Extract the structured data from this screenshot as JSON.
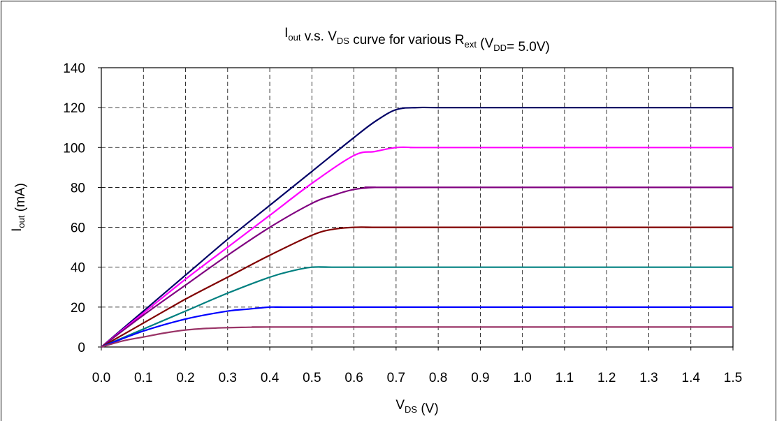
{
  "chart_data": {
    "type": "line",
    "title": {
      "parts": [
        {
          "text": "I",
          "sub": "out"
        },
        {
          "text": " v.s. V",
          "sub": "DS"
        },
        {
          "text": " curve for various R",
          "sub": "ext"
        },
        {
          "text": " (V",
          "sub": "DD"
        },
        {
          "text": "= 5.0V)",
          "sub": ""
        }
      ]
    },
    "xlabel": {
      "main": "V",
      "sub": "DS",
      "suffix": " (V)"
    },
    "ylabel": {
      "main": "I",
      "sub": "out",
      "suffix": " (mA)"
    },
    "xlim": [
      0,
      1.5
    ],
    "ylim": [
      0,
      140
    ],
    "xticks": [
      "0.0",
      "0.1",
      "0.2",
      "0.3",
      "0.4",
      "0.5",
      "0.6",
      "0.7",
      "0.8",
      "0.9",
      "1.0",
      "1.1",
      "1.2",
      "1.3",
      "1.4",
      "1.5"
    ],
    "yticks": [
      "0",
      "20",
      "40",
      "60",
      "80",
      "100",
      "120",
      "140"
    ],
    "grid": true,
    "legend": "none",
    "series": [
      {
        "color": "#000066",
        "x": [
          0,
          0.1,
          0.2,
          0.3,
          0.4,
          0.5,
          0.6,
          0.65,
          0.7,
          0.75,
          0.8,
          1.0,
          1.5
        ],
        "y": [
          0,
          18,
          36,
          54,
          71,
          88,
          105,
          113,
          119,
          120,
          120,
          120,
          120
        ]
      },
      {
        "color": "#ff00ff",
        "x": [
          0,
          0.1,
          0.2,
          0.3,
          0.4,
          0.5,
          0.6,
          0.65,
          0.7,
          0.75,
          0.8,
          1.5
        ],
        "y": [
          0,
          17,
          34,
          50,
          66,
          82,
          96,
          98,
          100,
          100,
          100,
          100
        ]
      },
      {
        "color": "#800080",
        "x": [
          0,
          0.1,
          0.2,
          0.3,
          0.4,
          0.5,
          0.55,
          0.6,
          0.65,
          0.7,
          1.5
        ],
        "y": [
          0,
          16,
          31,
          46,
          60,
          72,
          76,
          79,
          80,
          80,
          80
        ]
      },
      {
        "color": "#800000",
        "x": [
          0,
          0.1,
          0.2,
          0.3,
          0.4,
          0.5,
          0.55,
          0.6,
          0.65,
          0.7,
          1.5
        ],
        "y": [
          0,
          12,
          24,
          35,
          46,
          56,
          59,
          60,
          60,
          60,
          60
        ]
      },
      {
        "color": "#008080",
        "x": [
          0,
          0.1,
          0.2,
          0.3,
          0.4,
          0.45,
          0.5,
          0.55,
          0.6,
          1.5
        ],
        "y": [
          0,
          9,
          18,
          27,
          35,
          38,
          40,
          40,
          40,
          40
        ]
      },
      {
        "color": "#0000ff",
        "x": [
          0,
          0.1,
          0.2,
          0.3,
          0.35,
          0.4,
          0.45,
          0.5,
          1.5
        ],
        "y": [
          0,
          8,
          14,
          18,
          19,
          20,
          20,
          20,
          20
        ]
      },
      {
        "color": "#993366",
        "x": [
          0,
          0.05,
          0.1,
          0.15,
          0.2,
          0.25,
          0.3,
          0.35,
          0.4,
          0.45,
          1.5
        ],
        "y": [
          0,
          3,
          5,
          7,
          8.5,
          9.3,
          9.7,
          9.9,
          10,
          10,
          10
        ]
      }
    ]
  }
}
